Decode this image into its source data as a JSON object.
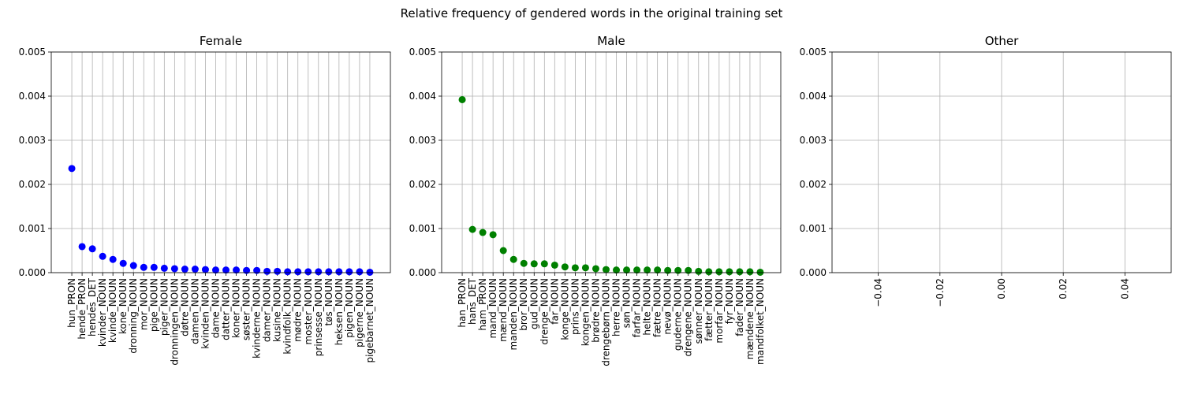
{
  "suptitle": "Relative frequency of gendered words in the original training set",
  "chart_data": [
    {
      "type": "scatter",
      "title": "Female",
      "color": "#0000ff",
      "grid": true,
      "ylim": [
        0,
        0.005
      ],
      "yticks": [
        "0.000",
        "0.001",
        "0.002",
        "0.003",
        "0.004",
        "0.005"
      ],
      "categories": [
        "hun_PRON",
        "hende_PRON",
        "hendes_DET",
        "kvinder_NOUN",
        "kvinde_NOUN",
        "kone_NOUN",
        "dronning_NOUN",
        "mor_NOUN",
        "pige_NOUN",
        "piger_NOUN",
        "dronningen_NOUN",
        "døtre_NOUN",
        "damen_NOUN",
        "kvinden_NOUN",
        "dame_NOUN",
        "datter_NOUN",
        "koner_NOUN",
        "søster_NOUN",
        "kvinderne_NOUN",
        "damer_NOUN",
        "kusine_NOUN",
        "kvindfolk_NOUN",
        "mødre_NOUN",
        "moster_NOUN",
        "prinsesse_NOUN",
        "tøs_NOUN",
        "heksen_NOUN",
        "pigen_NOUN",
        "pigerne_NOUN",
        "pigebarnet_NOUN"
      ],
      "values": [
        0.00236,
        0.00059,
        0.00054,
        0.00037,
        0.0003,
        0.00021,
        0.00016,
        0.00012,
        0.00012,
        0.0001,
        9e-05,
        8e-05,
        8e-05,
        7e-05,
        6e-05,
        6e-05,
        6e-05,
        5e-05,
        5e-05,
        3e-05,
        3e-05,
        2e-05,
        2e-05,
        2e-05,
        2e-05,
        2e-05,
        2e-05,
        2e-05,
        2e-05,
        1e-05
      ]
    },
    {
      "type": "scatter",
      "title": "Male",
      "color": "#008000",
      "grid": true,
      "ylim": [
        0,
        0.005
      ],
      "yticks": [
        "0.000",
        "0.001",
        "0.002",
        "0.003",
        "0.004",
        "0.005"
      ],
      "categories": [
        "han_PRON",
        "hans_DET",
        "ham_PRON",
        "mand_NOUN",
        "mænd_NOUN",
        "manden_NOUN",
        "bror_NOUN",
        "gud_NOUN",
        "drenge_NOUN",
        "far_NOUN",
        "konge_NOUN",
        "prins_NOUN",
        "kongen_NOUN",
        "brødre_NOUN",
        "drengebørn_NOUN",
        "herre_NOUN",
        "søn_NOUN",
        "farfar_NOUN",
        "helte_NOUN",
        "fætre_NOUN",
        "nevø_NOUN",
        "guderne_NOUN",
        "drengene_NOUN",
        "sønner_NOUN",
        "fætter_NOUN",
        "morfar_NOUN",
        "fyr_NOUN",
        "fader_NOUN",
        "mændene_NOUN",
        "mandfolket_NOUN"
      ],
      "values": [
        0.00392,
        0.00098,
        0.00091,
        0.00086,
        0.0005,
        0.0003,
        0.00021,
        0.0002,
        0.0002,
        0.00017,
        0.00013,
        0.00011,
        0.00011,
        9e-05,
        7e-05,
        6e-05,
        6e-05,
        6e-05,
        6e-05,
        6e-05,
        5e-05,
        5e-05,
        5e-05,
        3e-05,
        2e-05,
        2e-05,
        2e-05,
        2e-05,
        2e-05,
        1e-05
      ]
    },
    {
      "type": "scatter",
      "title": "Other",
      "color": "#000000",
      "grid": true,
      "ylim": [
        0,
        0.005
      ],
      "yticks": [
        "0.000",
        "0.001",
        "0.002",
        "0.003",
        "0.004",
        "0.005"
      ],
      "xlim": [
        -0.055,
        0.055
      ],
      "xticks": [
        -0.04,
        -0.02,
        0.0,
        0.02,
        0.04
      ],
      "xtick_labels": [
        "−0.04",
        "−0.02",
        "0.00",
        "0.02",
        "0.04"
      ],
      "categories": [],
      "values": []
    }
  ]
}
